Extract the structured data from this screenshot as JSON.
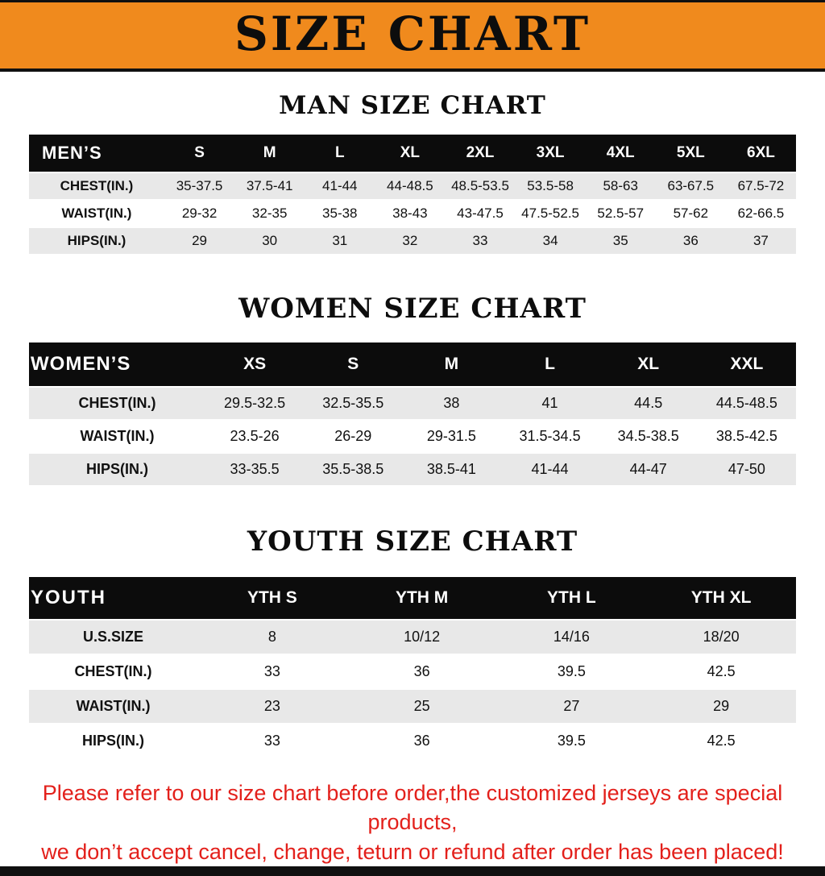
{
  "banner": {
    "title": "SIZE CHART"
  },
  "sections": {
    "men": {
      "heading": "MAN SIZE CHART",
      "table": {
        "header": [
          "MEN’S",
          "S",
          "M",
          "L",
          "XL",
          "2XL",
          "3XL",
          "4XL",
          "5XL",
          "6XL"
        ],
        "rows": [
          [
            "CHEST(IN.)",
            "35-37.5",
            "37.5-41",
            "41-44",
            "44-48.5",
            "48.5-53.5",
            "53.5-58",
            "58-63",
            "63-67.5",
            "67.5-72"
          ],
          [
            "WAIST(IN.)",
            "29-32",
            "32-35",
            "35-38",
            "38-43",
            "43-47.5",
            "47.5-52.5",
            "52.5-57",
            "57-62",
            "62-66.5"
          ],
          [
            "HIPS(IN.)",
            "29",
            "30",
            "31",
            "32",
            "33",
            "34",
            "35",
            "36",
            "37"
          ]
        ]
      }
    },
    "women": {
      "heading": "WOMEN SIZE CHART",
      "table": {
        "header": [
          "WOMEN’S",
          "XS",
          "S",
          "M",
          "L",
          "XL",
          "XXL"
        ],
        "rows": [
          [
            "CHEST(IN.)",
            "29.5-32.5",
            "32.5-35.5",
            "38",
            "41",
            "44.5",
            "44.5-48.5"
          ],
          [
            "WAIST(IN.)",
            "23.5-26",
            "26-29",
            "29-31.5",
            "31.5-34.5",
            "34.5-38.5",
            "38.5-42.5"
          ],
          [
            "HIPS(IN.)",
            "33-35.5",
            "35.5-38.5",
            "38.5-41",
            "41-44",
            "44-47",
            "47-50"
          ]
        ]
      }
    },
    "youth": {
      "heading": "YOUTH SIZE CHART",
      "table": {
        "header": [
          "YOUTH",
          "YTH S",
          "YTH M",
          "YTH L",
          "YTH XL"
        ],
        "rows": [
          [
            "U.S.SIZE",
            "8",
            "10/12",
            "14/16",
            "18/20"
          ],
          [
            "CHEST(IN.)",
            "33",
            "36",
            "39.5",
            "42.5"
          ],
          [
            "WAIST(IN.)",
            "23",
            "25",
            "27",
            "29"
          ],
          [
            "HIPS(IN.)",
            "33",
            "36",
            "39.5",
            "42.5"
          ]
        ]
      }
    }
  },
  "footer": {
    "line1": "Please refer to our size chart before order,the customized jerseys are special products,",
    "line2": "we don’t accept cancel, change, teturn or refund after order has been placed!"
  },
  "colors": {
    "banner_bg": "#F08A1D",
    "table_header_bg": "#0C0C0C",
    "stripe_bg": "#E8E8E8",
    "note_red": "#E3201B",
    "bottom_bar": "#101010"
  }
}
